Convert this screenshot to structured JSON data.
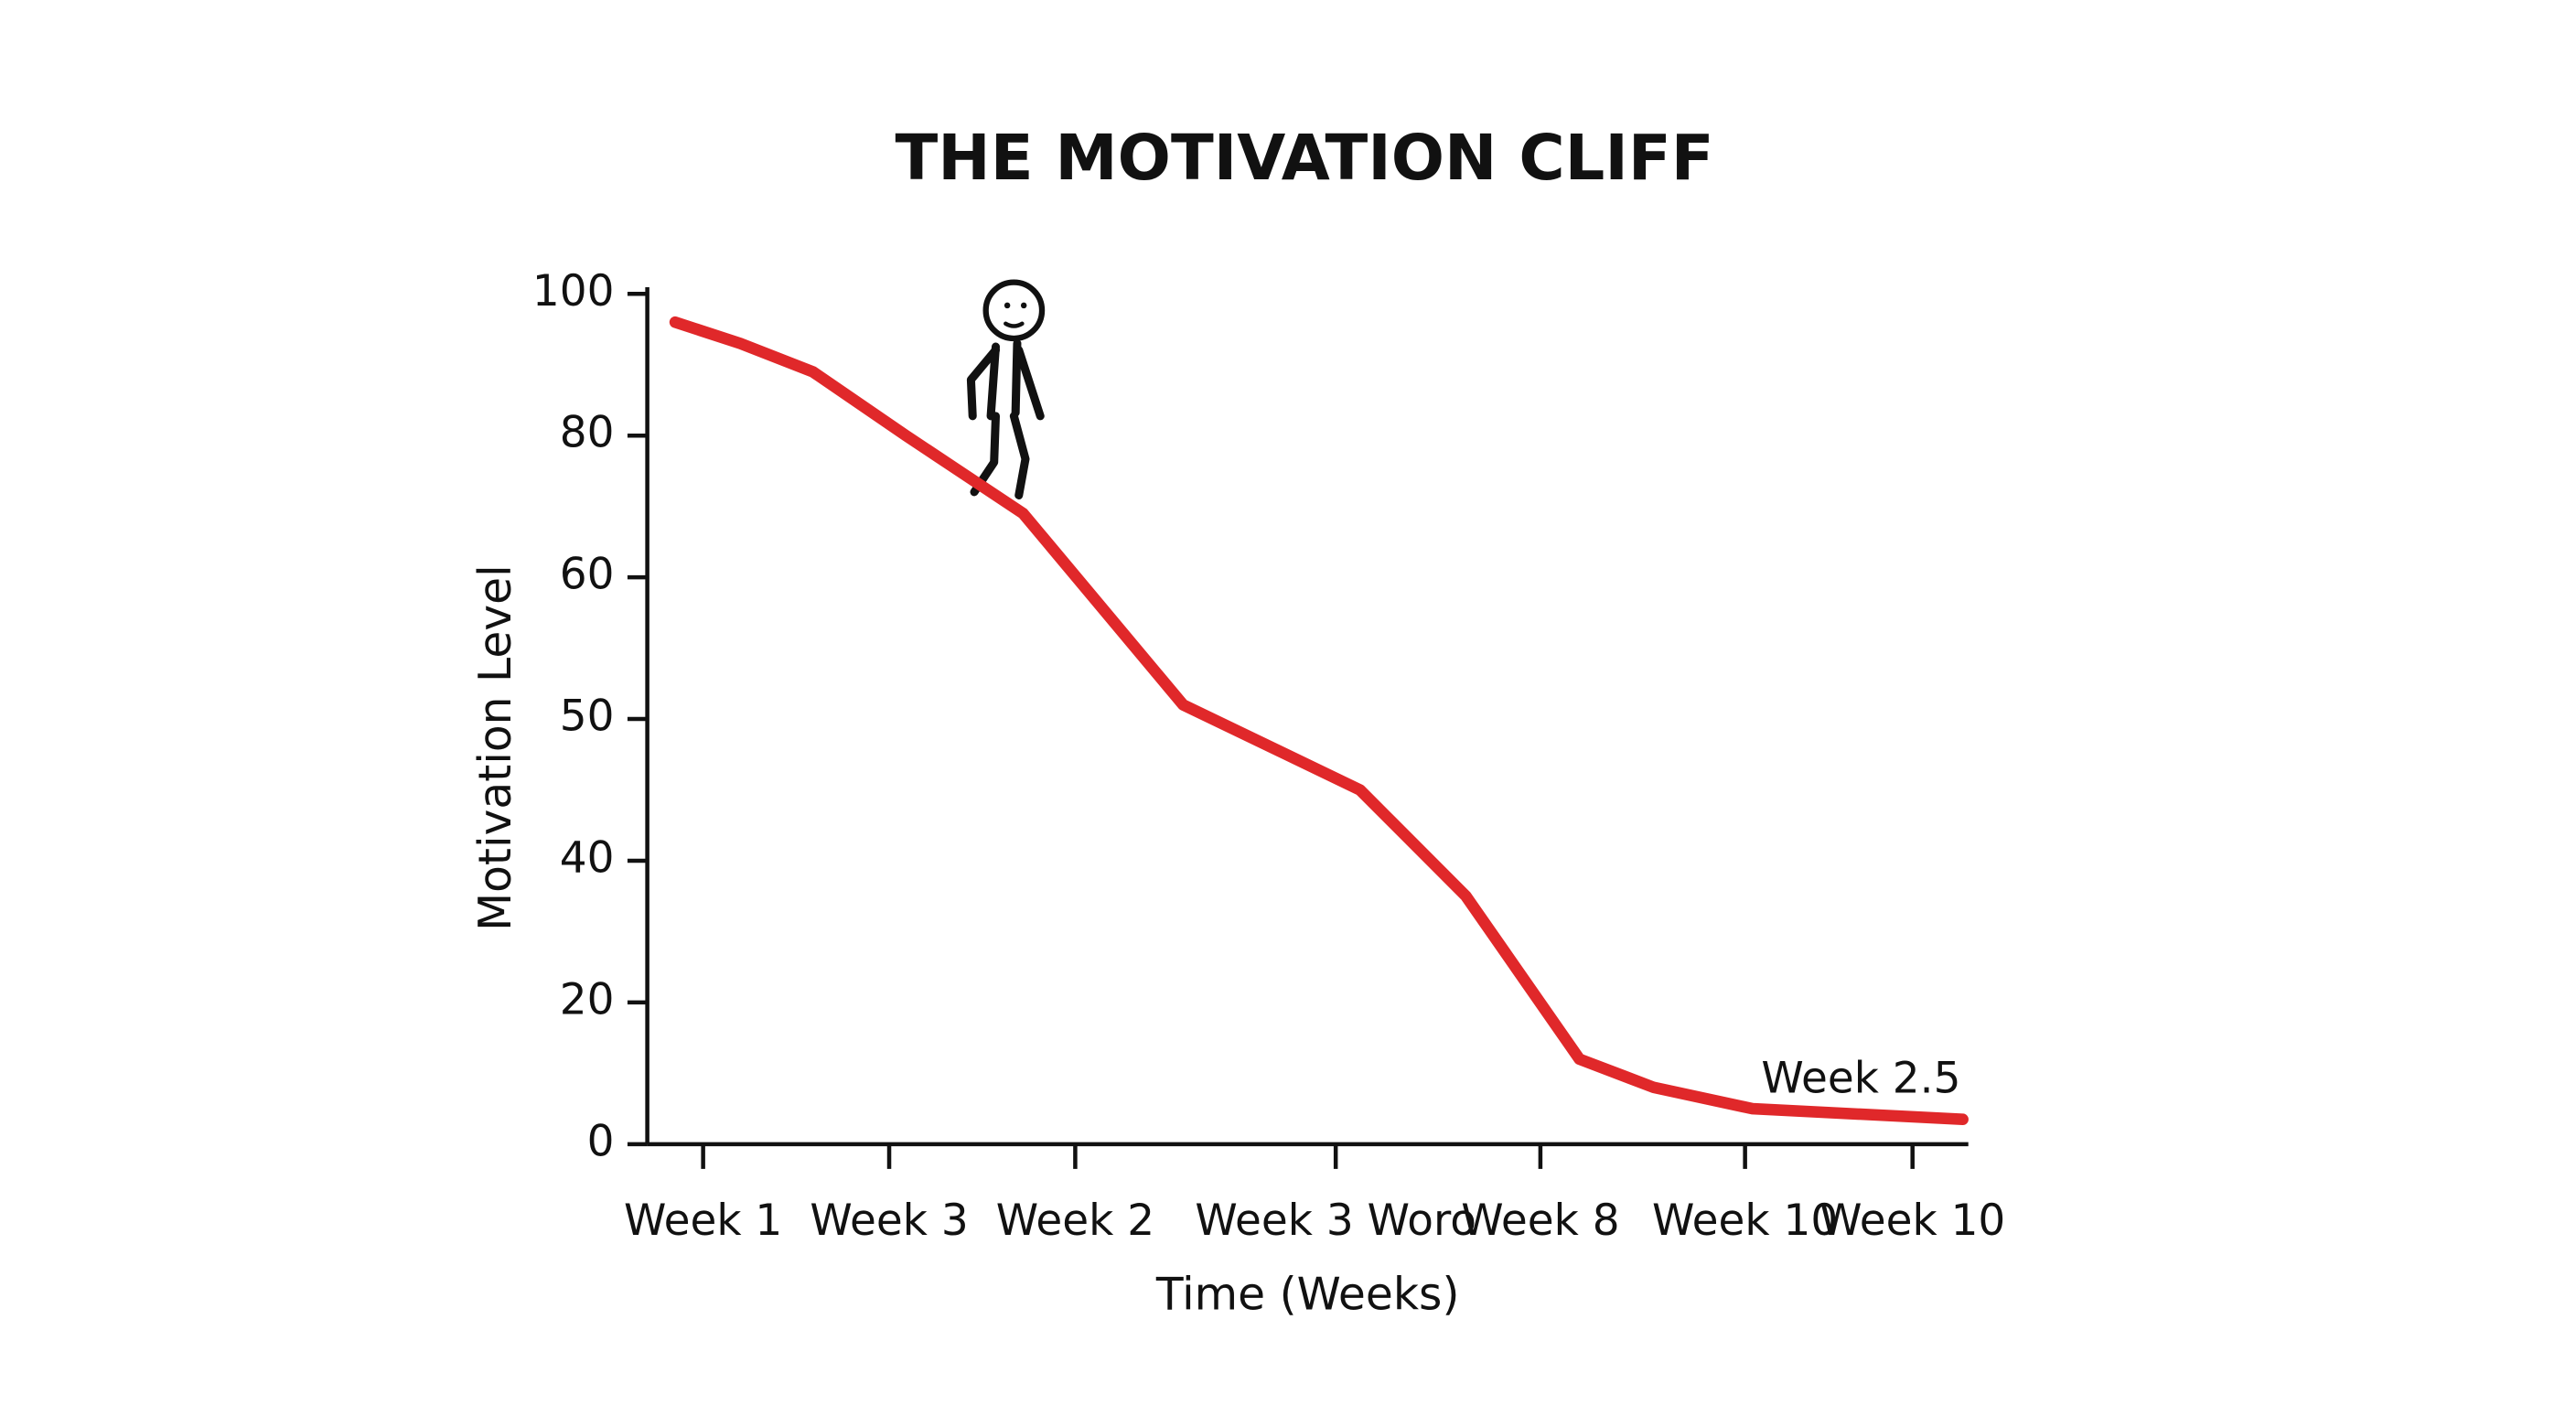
{
  "chart_data": {
    "type": "line",
    "title": "THE MOTIVATION CLIFF",
    "xlabel": "Time (Weeks)",
    "ylabel": "Motivation Level",
    "x": [
      0.85,
      1.2,
      1.59,
      2.09,
      2.72,
      3.58,
      4.53,
      5.1,
      5.71,
      6.11,
      6.64,
      7.77
    ],
    "values": [
      96,
      93,
      89,
      80,
      69,
      51,
      45,
      35,
      12,
      8,
      5,
      3.5
    ],
    "color": "#e0282a",
    "xlim": [
      0.7,
      7.8
    ],
    "xticks": [
      {
        "value": 1,
        "label": "Week 1"
      },
      {
        "value": 2,
        "label": "Week 3"
      },
      {
        "value": 3,
        "label": "Week 2"
      },
      {
        "value": 4.4,
        "label": "Week 3 Woro"
      },
      {
        "value": 5.5,
        "label": "Week 8"
      },
      {
        "value": 6.6,
        "label": "Week 10"
      },
      {
        "value": 7.5,
        "label": "Week 10"
      }
    ],
    "ylim": [
      0,
      100
    ],
    "yticks": [
      0,
      20,
      40,
      50,
      60,
      80,
      100
    ],
    "annotation": "Week 2.5"
  }
}
